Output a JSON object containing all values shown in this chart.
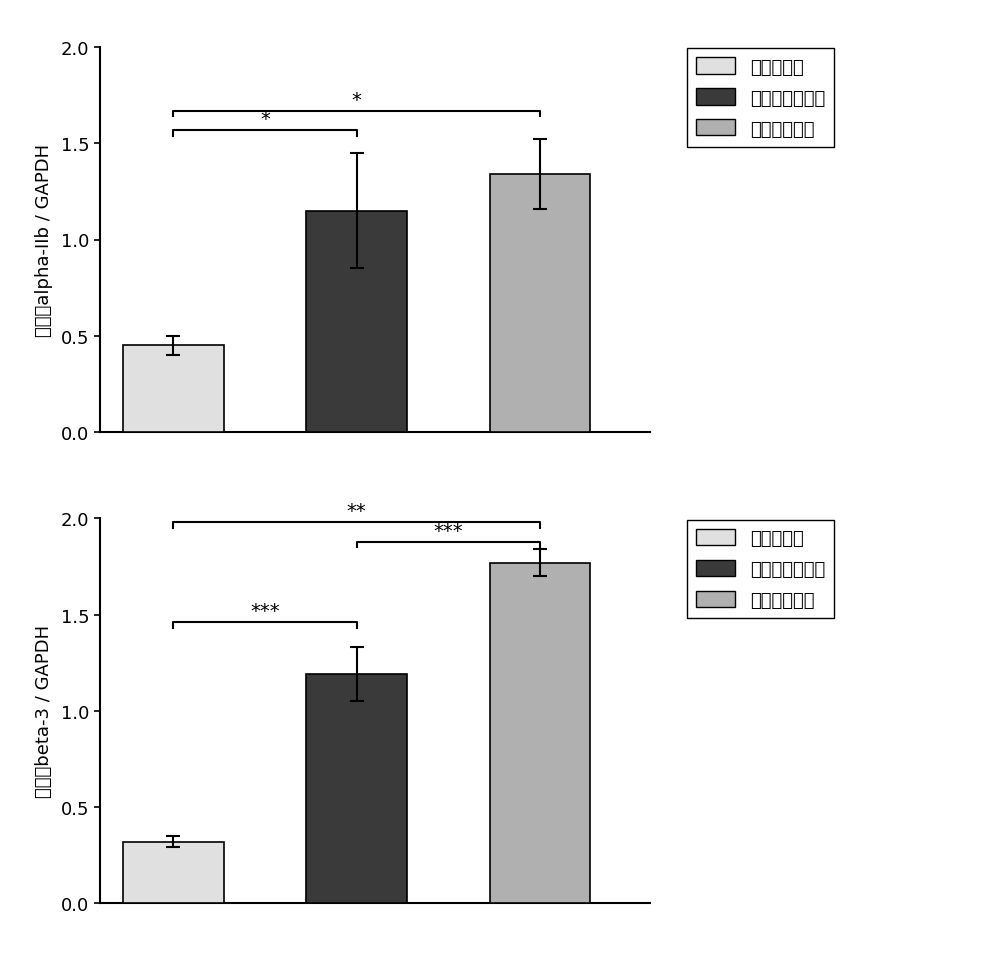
{
  "chart1": {
    "ylabel": "整合素alpha-IIb / GAPDH",
    "bars": [
      {
        "label": "健康对照组",
        "value": 0.45,
        "error": 0.05,
        "color": "#e0e0e0",
        "edgecolor": "#000000"
      },
      {
        "label": "结核潜伏感染组",
        "value": 1.15,
        "error": 0.3,
        "color": "#3a3a3a",
        "edgecolor": "#000000"
      },
      {
        "label": "活动性肺结核",
        "value": 1.34,
        "error": 0.18,
        "color": "#b0b0b0",
        "edgecolor": "#000000"
      }
    ],
    "ylim": [
      0,
      2.0
    ],
    "yticks": [
      0.0,
      0.5,
      1.0,
      1.5,
      2.0
    ],
    "significance": [
      {
        "bar1": 0,
        "bar2": 1,
        "label": "*",
        "y": 1.57
      },
      {
        "bar1": 0,
        "bar2": 2,
        "label": "*",
        "y": 1.67
      }
    ]
  },
  "chart2": {
    "ylabel": "整合素beta-3 / GAPDH",
    "bars": [
      {
        "label": "健康对照组",
        "value": 0.32,
        "error": 0.03,
        "color": "#e0e0e0",
        "edgecolor": "#000000"
      },
      {
        "label": "结核潜伏感染组",
        "value": 1.19,
        "error": 0.14,
        "color": "#3a3a3a",
        "edgecolor": "#000000"
      },
      {
        "label": "活动性肺结核",
        "value": 1.77,
        "error": 0.07,
        "color": "#b0b0b0",
        "edgecolor": "#000000"
      }
    ],
    "ylim": [
      0,
      2.0
    ],
    "yticks": [
      0.0,
      0.5,
      1.0,
      1.5,
      2.0
    ],
    "significance": [
      {
        "bar1": 0,
        "bar2": 1,
        "label": "***",
        "y": 1.46
      },
      {
        "bar1": 0,
        "bar2": 2,
        "label": "**",
        "y": 1.98
      },
      {
        "bar1": 1,
        "bar2": 2,
        "label": "***",
        "y": 1.88
      }
    ]
  },
  "legend_labels": [
    "健康对照组",
    "结核潜伏感染组",
    "活动性肺结核"
  ],
  "legend_colors": [
    "#e0e0e0",
    "#3a3a3a",
    "#b0b0b0"
  ],
  "bar_width": 0.55,
  "bar_positions": [
    1,
    2,
    3
  ]
}
